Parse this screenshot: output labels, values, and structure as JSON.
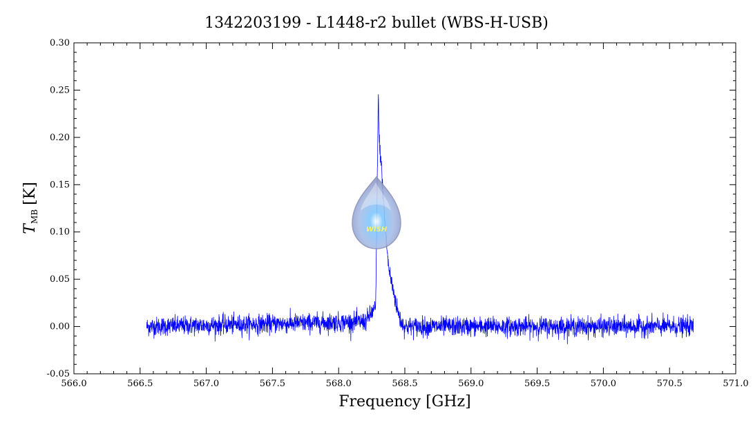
{
  "chart_data": {
    "type": "line",
    "title": "1342203199 - L1448-r2 bullet (WBS-H-USB)",
    "xlabel": "Frequency [GHz]",
    "ylabel_main": "T",
    "ylabel_sub": "MB",
    "ylabel_unit": "[K]",
    "xlim": [
      566.0,
      571.0
    ],
    "ylim": [
      -0.05,
      0.3
    ],
    "xticks": [
      "566.0",
      "566.5",
      "567.0",
      "567.5",
      "568.0",
      "568.5",
      "569.0",
      "569.5",
      "570.0",
      "570.5",
      "571.0"
    ],
    "yticks": [
      "-0.05",
      "0.00",
      "0.05",
      "0.10",
      "0.15",
      "0.20",
      "0.25",
      "0.30"
    ],
    "grid": false,
    "series": [
      {
        "color": "#0000ff",
        "x_range": [
          566.55,
          570.68
        ],
        "baseline": 0.0,
        "noise_rms": 0.005,
        "x": [
          566.55,
          568.2,
          568.28,
          568.3,
          568.305,
          568.32,
          568.34,
          568.36,
          568.38,
          568.41,
          568.44,
          568.47,
          568.5,
          570.68
        ],
        "y": [
          0.0,
          0.005,
          0.02,
          0.248,
          0.2,
          0.175,
          0.13,
          0.09,
          0.06,
          0.04,
          0.02,
          0.005,
          0.0,
          0.0
        ]
      }
    ],
    "logo_text": "WISH"
  }
}
